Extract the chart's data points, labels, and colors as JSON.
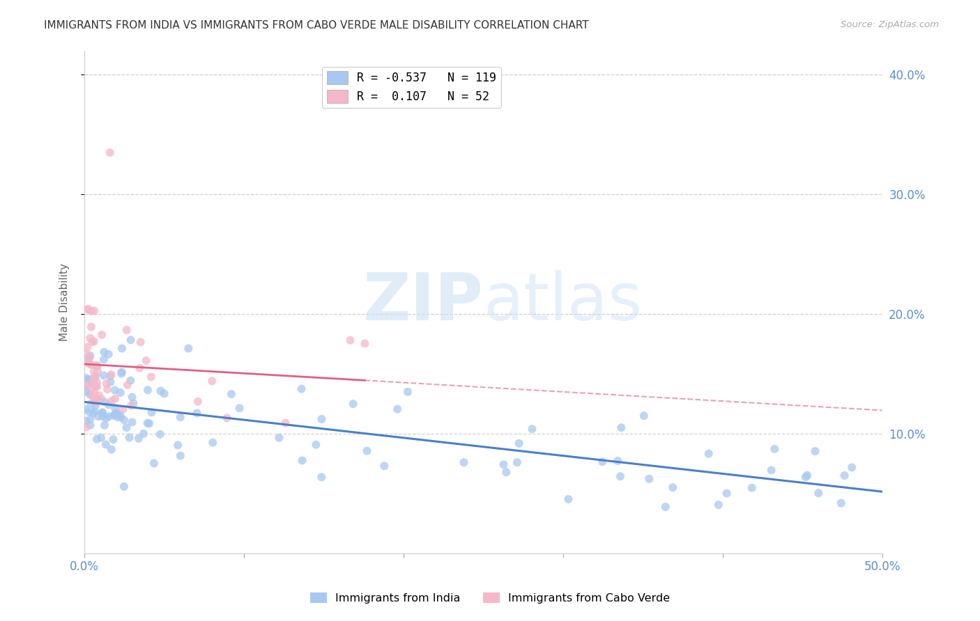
{
  "title": "IMMIGRANTS FROM INDIA VS IMMIGRANTS FROM CABO VERDE MALE DISABILITY CORRELATION CHART",
  "source": "Source: ZipAtlas.com",
  "ylabel": "Male Disability",
  "xlim": [
    0.0,
    0.5
  ],
  "ylim": [
    0.0,
    0.42
  ],
  "xtick_vals": [
    0.0,
    0.1,
    0.2,
    0.3,
    0.4,
    0.5
  ],
  "xtick_labels": [
    "0.0%",
    "",
    "",
    "",
    "",
    "50.0%"
  ],
  "ytick_vals": [
    0.1,
    0.2,
    0.3,
    0.4
  ],
  "ytick_labels": [
    "10.0%",
    "20.0%",
    "30.0%",
    "40.0%"
  ],
  "india_color": "#a8c8f0",
  "caboverde_color": "#f5b8c8",
  "india_line_color": "#4a7fcb",
  "caboverde_line_color": "#e06080",
  "background_color": "#ffffff",
  "grid_color": "#cccccc",
  "india_R": -0.537,
  "india_N": 119,
  "caboverde_R": 0.107,
  "caboverde_N": 52,
  "tick_color": "#5b8dd9",
  "label_color": "#666666",
  "watermark_color": "#ddeeff",
  "india_label": "Immigrants from India",
  "caboverde_label": "Immigrants from Cabo Verde"
}
